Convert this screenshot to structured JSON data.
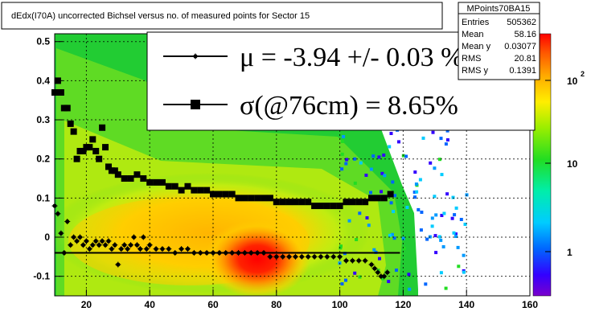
{
  "chart_data": {
    "type": "heatmap",
    "title": "dEdx(I70A) uncorrected Bichsel versus no. of measured points for Sector 15",
    "xlabel": "",
    "ylabel": "",
    "xlim": [
      10,
      160
    ],
    "ylim": [
      -0.15,
      0.52
    ],
    "x_ticks": [
      "20",
      "40",
      "60",
      "80",
      "100",
      "120",
      "140",
      "160"
    ],
    "y_ticks": [
      "-0.1",
      "0",
      "0.1",
      "0.2",
      "0.3",
      "0.4",
      "0.5"
    ],
    "z_scale": "log",
    "z_ticks": [
      "1",
      "10",
      "10"
    ],
    "z_tick_exponent": "2",
    "grid": true,
    "stats_box": {
      "name": "MPoints70BA15",
      "rows": [
        {
          "label": "Entries",
          "value": "505362"
        },
        {
          "label": "Mean",
          "value": "58.16"
        },
        {
          "label": "Mean y",
          "value": "0.03077"
        },
        {
          "label": "RMS",
          "value": "20.81"
        },
        {
          "label": "RMS y",
          "value": "0.1391"
        }
      ]
    },
    "legend": {
      "placement": "top",
      "entries": [
        {
          "symbol": "star-line",
          "text": "μ  = -3.94 +/-  0.03 %"
        },
        {
          "symbol": "square-line",
          "text": "σ(@76cm) =  8.65%"
        }
      ]
    },
    "series": [
      {
        "marker": "star",
        "x": [
          10,
          11,
          12,
          13,
          14,
          15,
          16,
          17,
          18,
          19,
          20,
          21,
          22,
          23,
          24,
          25,
          26,
          27,
          28,
          29,
          30,
          31,
          32,
          33,
          34,
          35,
          36,
          37,
          38,
          39,
          40,
          42,
          44,
          46,
          48,
          50,
          52,
          54,
          56,
          58,
          60,
          62,
          64,
          66,
          68,
          70,
          72,
          74,
          76,
          78,
          80,
          82,
          84,
          86,
          88,
          90,
          92,
          94,
          96,
          98,
          100,
          102,
          104,
          106,
          108,
          110,
          111,
          112,
          113,
          114,
          115
        ],
        "y": [
          0.08,
          0.06,
          0.01,
          -0.04,
          0.04,
          -0.02,
          0.0,
          -0.01,
          0.0,
          -0.02,
          -0.01,
          -0.03,
          -0.02,
          -0.01,
          -0.02,
          -0.01,
          -0.02,
          -0.01,
          -0.03,
          -0.02,
          -0.07,
          -0.03,
          -0.02,
          -0.03,
          -0.02,
          0.0,
          -0.02,
          -0.03,
          0.0,
          -0.03,
          -0.02,
          -0.03,
          -0.03,
          -0.03,
          -0.04,
          -0.03,
          -0.03,
          -0.04,
          -0.04,
          -0.04,
          -0.04,
          -0.04,
          -0.04,
          -0.04,
          -0.04,
          -0.04,
          -0.04,
          -0.04,
          -0.04,
          -0.05,
          -0.05,
          -0.05,
          -0.05,
          -0.05,
          -0.05,
          -0.05,
          -0.05,
          -0.05,
          -0.05,
          -0.05,
          -0.05,
          -0.06,
          -0.06,
          -0.06,
          -0.06,
          -0.07,
          -0.08,
          -0.09,
          -0.1,
          -0.1,
          -0.09
        ]
      },
      {
        "marker": "square",
        "x": [
          10,
          11,
          12,
          13,
          14,
          15,
          16,
          17,
          18,
          19,
          20,
          21,
          22,
          23,
          24,
          25,
          26,
          27,
          28,
          29,
          30,
          32,
          34,
          36,
          38,
          40,
          42,
          44,
          46,
          48,
          50,
          52,
          54,
          56,
          58,
          60,
          62,
          64,
          66,
          68,
          70,
          72,
          74,
          76,
          78,
          80,
          82,
          84,
          86,
          88,
          90,
          92,
          94,
          96,
          98,
          100,
          102,
          104,
          106,
          108,
          110,
          112,
          114,
          116
        ],
        "y": [
          0.37,
          0.4,
          0.37,
          0.33,
          0.33,
          0.29,
          0.27,
          0.2,
          0.22,
          0.22,
          0.23,
          0.23,
          0.25,
          0.22,
          0.2,
          0.28,
          0.23,
          0.18,
          0.17,
          0.17,
          0.16,
          0.15,
          0.15,
          0.16,
          0.15,
          0.14,
          0.14,
          0.14,
          0.13,
          0.13,
          0.12,
          0.13,
          0.12,
          0.12,
          0.12,
          0.11,
          0.11,
          0.11,
          0.11,
          0.1,
          0.1,
          0.1,
          0.1,
          0.1,
          0.1,
          0.09,
          0.09,
          0.09,
          0.09,
          0.09,
          0.09,
          0.08,
          0.08,
          0.08,
          0.08,
          0.08,
          0.09,
          0.09,
          0.09,
          0.09,
          0.1,
          0.1,
          0.1,
          0.11
        ]
      }
    ],
    "fit_line": {
      "x": [
        10,
        119
      ],
      "y": [
        -0.04,
        -0.04
      ]
    }
  }
}
